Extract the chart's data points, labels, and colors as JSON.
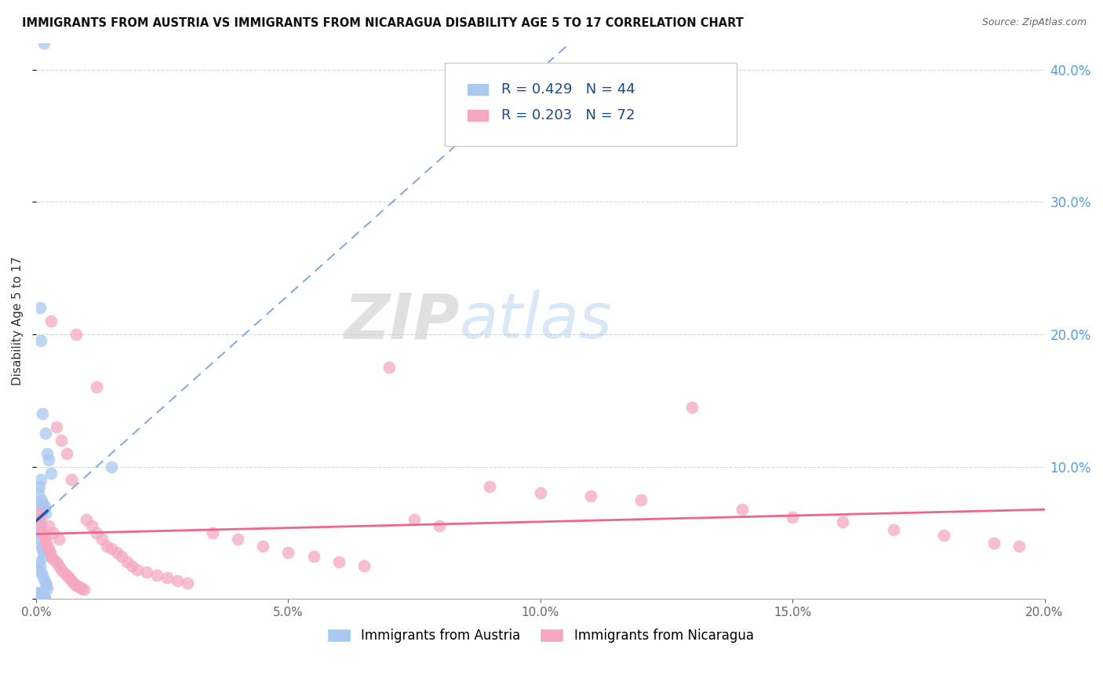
{
  "title": "IMMIGRANTS FROM AUSTRIA VS IMMIGRANTS FROM NICARAGUA DISABILITY AGE 5 TO 17 CORRELATION CHART",
  "source": "Source: ZipAtlas.com",
  "ylabel": "Disability Age 5 to 17",
  "xlim": [
    0.0,
    0.2
  ],
  "ylim": [
    0.0,
    0.42
  ],
  "austria_color": "#A8C8F0",
  "nicaragua_color": "#F5A8C0",
  "austria_line_color": "#2255AA",
  "nicaragua_line_color": "#EE6688",
  "austria_dash_color": "#88AADD",
  "austria_R": 0.429,
  "austria_N": 44,
  "nicaragua_R": 0.203,
  "nicaragua_N": 72,
  "watermark_zip": "ZIP",
  "watermark_atlas": "atlas",
  "legend_austria_R": "R = 0.429",
  "legend_austria_N": "N = 44",
  "legend_nicaragua_R": "R = 0.203",
  "legend_nicaragua_N": "N = 72",
  "bottom_label_austria": "Immigrants from Austria",
  "bottom_label_nicaragua": "Immigrants from Nicaragua",
  "austria_x": [
    0.0015,
    0.0008,
    0.001,
    0.0012,
    0.0018,
    0.0022,
    0.0025,
    0.003,
    0.0005,
    0.0007,
    0.0009,
    0.0011,
    0.0013,
    0.0015,
    0.0017,
    0.0019,
    0.0003,
    0.0004,
    0.0006,
    0.0008,
    0.001,
    0.0012,
    0.0014,
    0.0016,
    0.0005,
    0.0008,
    0.001,
    0.0012,
    0.0015,
    0.0018,
    0.002,
    0.0022,
    0.0003,
    0.0005,
    0.0007,
    0.0009,
    0.0011,
    0.0013,
    0.0015,
    0.0017,
    0.0004,
    0.0006,
    0.0009,
    0.015
  ],
  "austria_y": [
    0.42,
    0.22,
    0.195,
    0.14,
    0.125,
    0.11,
    0.105,
    0.095,
    0.08,
    0.085,
    0.09,
    0.075,
    0.072,
    0.068,
    0.07,
    0.065,
    0.06,
    0.055,
    0.05,
    0.045,
    0.04,
    0.038,
    0.035,
    0.032,
    0.028,
    0.025,
    0.02,
    0.018,
    0.015,
    0.012,
    0.01,
    0.008,
    0.005,
    0.004,
    0.003,
    0.003,
    0.002,
    0.002,
    0.001,
    0.001,
    0.06,
    0.07,
    0.065,
    0.1
  ],
  "nicaragua_x": [
    0.0005,
    0.0008,
    0.001,
    0.0012,
    0.0015,
    0.0018,
    0.002,
    0.0022,
    0.0025,
    0.0028,
    0.003,
    0.0035,
    0.004,
    0.0045,
    0.005,
    0.0055,
    0.006,
    0.0065,
    0.007,
    0.0075,
    0.008,
    0.0085,
    0.009,
    0.0095,
    0.01,
    0.011,
    0.012,
    0.013,
    0.014,
    0.015,
    0.016,
    0.017,
    0.018,
    0.019,
    0.02,
    0.022,
    0.024,
    0.026,
    0.028,
    0.03,
    0.035,
    0.04,
    0.045,
    0.05,
    0.055,
    0.06,
    0.065,
    0.07,
    0.075,
    0.08,
    0.09,
    0.1,
    0.11,
    0.12,
    0.13,
    0.14,
    0.15,
    0.16,
    0.17,
    0.18,
    0.19,
    0.003,
    0.004,
    0.005,
    0.006,
    0.007,
    0.0025,
    0.0035,
    0.0045,
    0.012,
    0.195,
    0.008
  ],
  "nicaragua_y": [
    0.065,
    0.06,
    0.055,
    0.05,
    0.048,
    0.045,
    0.042,
    0.04,
    0.038,
    0.035,
    0.032,
    0.03,
    0.028,
    0.025,
    0.022,
    0.02,
    0.018,
    0.016,
    0.014,
    0.012,
    0.01,
    0.009,
    0.008,
    0.007,
    0.06,
    0.055,
    0.05,
    0.045,
    0.04,
    0.038,
    0.035,
    0.032,
    0.028,
    0.025,
    0.022,
    0.02,
    0.018,
    0.016,
    0.014,
    0.012,
    0.05,
    0.045,
    0.04,
    0.035,
    0.032,
    0.028,
    0.025,
    0.175,
    0.06,
    0.055,
    0.085,
    0.08,
    0.078,
    0.075,
    0.145,
    0.068,
    0.062,
    0.058,
    0.052,
    0.048,
    0.042,
    0.21,
    0.13,
    0.12,
    0.11,
    0.09,
    0.055,
    0.05,
    0.045,
    0.16,
    0.04,
    0.2
  ]
}
